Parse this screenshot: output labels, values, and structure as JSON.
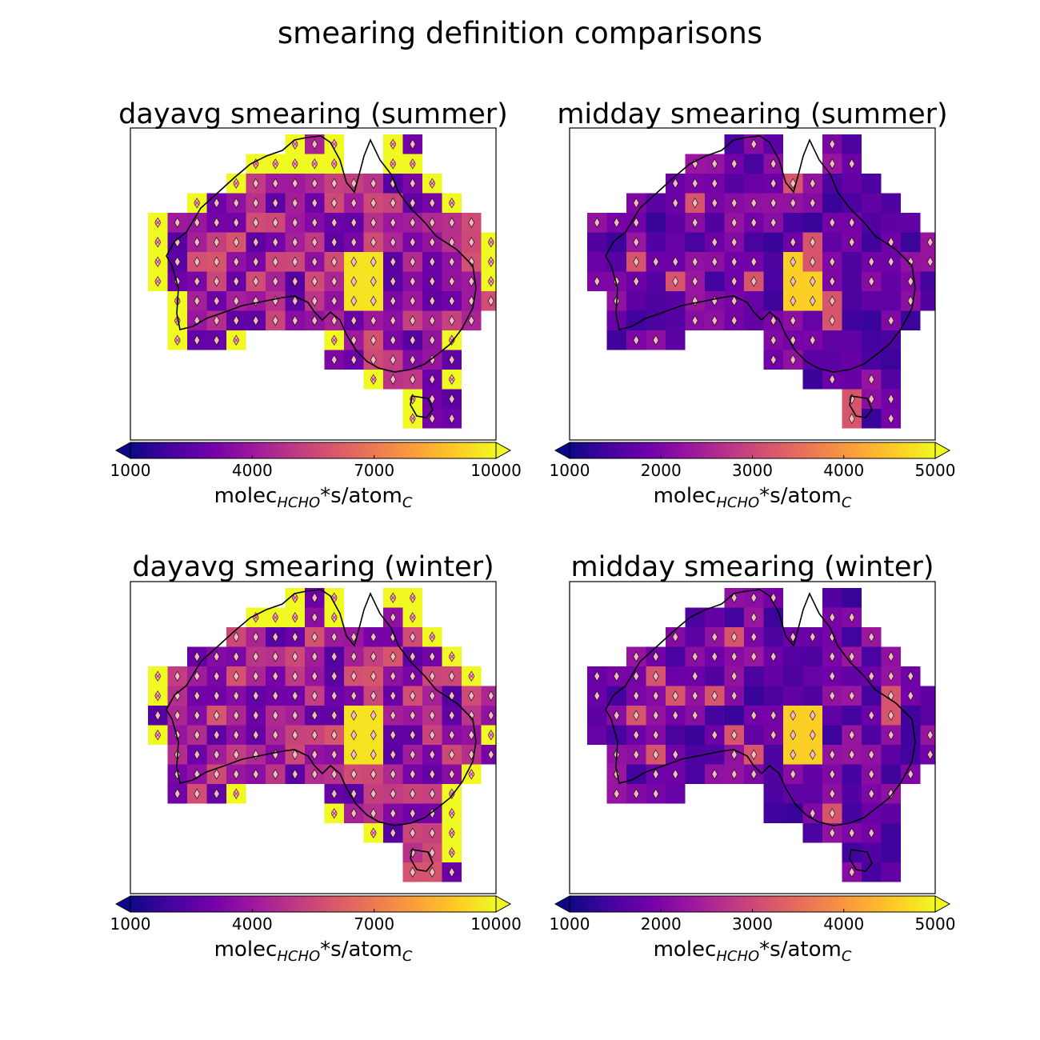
{
  "figure": {
    "title": "smearing definition comparisons",
    "units_main": "molec",
    "units_sub1": "HCHO",
    "units_mid": "*s/atom",
    "units_sub2": "C"
  },
  "colors": {
    "colormap": "plasma",
    "colormap_stops": [
      "#0d0887",
      "#46039f",
      "#7201a8",
      "#9c179e",
      "#bd3786",
      "#d8576b",
      "#ed7953",
      "#fb9f3a",
      "#fdca26",
      "#f0f921"
    ],
    "coastline": "#000000",
    "marker_fill": "#f4b8c0",
    "marker_edge": "#000000",
    "cross_hatch": "#c0306a"
  },
  "chart_data": [
    {
      "type": "heatmap",
      "title": "dayavg smearing (summer)",
      "colorbar": {
        "ticks": [
          "1000",
          "4000",
          "7000",
          "10000"
        ],
        "range": [
          1000,
          10000
        ],
        "extend": "both"
      },
      "grid": "off",
      "legend": "colorbar below map",
      "markers": "diamond markers on most grid cells; crossed markers on saturated coastal cells"
    },
    {
      "type": "heatmap",
      "title": "midday smearing (summer)",
      "colorbar": {
        "ticks": [
          "1000",
          "2000",
          "3000",
          "4000",
          "5000"
        ],
        "range": [
          1000,
          5000
        ],
        "extend": "both"
      },
      "grid": "off",
      "legend": "colorbar below map",
      "markers": "diamond markers on cells above threshold"
    },
    {
      "type": "heatmap",
      "title": "dayavg smearing (winter)",
      "colorbar": {
        "ticks": [
          "1000",
          "4000",
          "7000",
          "10000"
        ],
        "range": [
          1000,
          10000
        ],
        "extend": "both"
      },
      "grid": "off",
      "legend": "colorbar below map",
      "markers": "diamond markers on most grid cells; crossed markers on saturated coastal cells"
    },
    {
      "type": "heatmap",
      "title": "midday smearing (winter)",
      "colorbar": {
        "ticks": [
          "1000",
          "2000",
          "3000",
          "4000",
          "5000"
        ],
        "range": [
          1000,
          5000
        ],
        "extend": "both"
      },
      "grid": "off",
      "legend": "colorbar below map",
      "markers": "diamond markers on cells above threshold"
    }
  ]
}
